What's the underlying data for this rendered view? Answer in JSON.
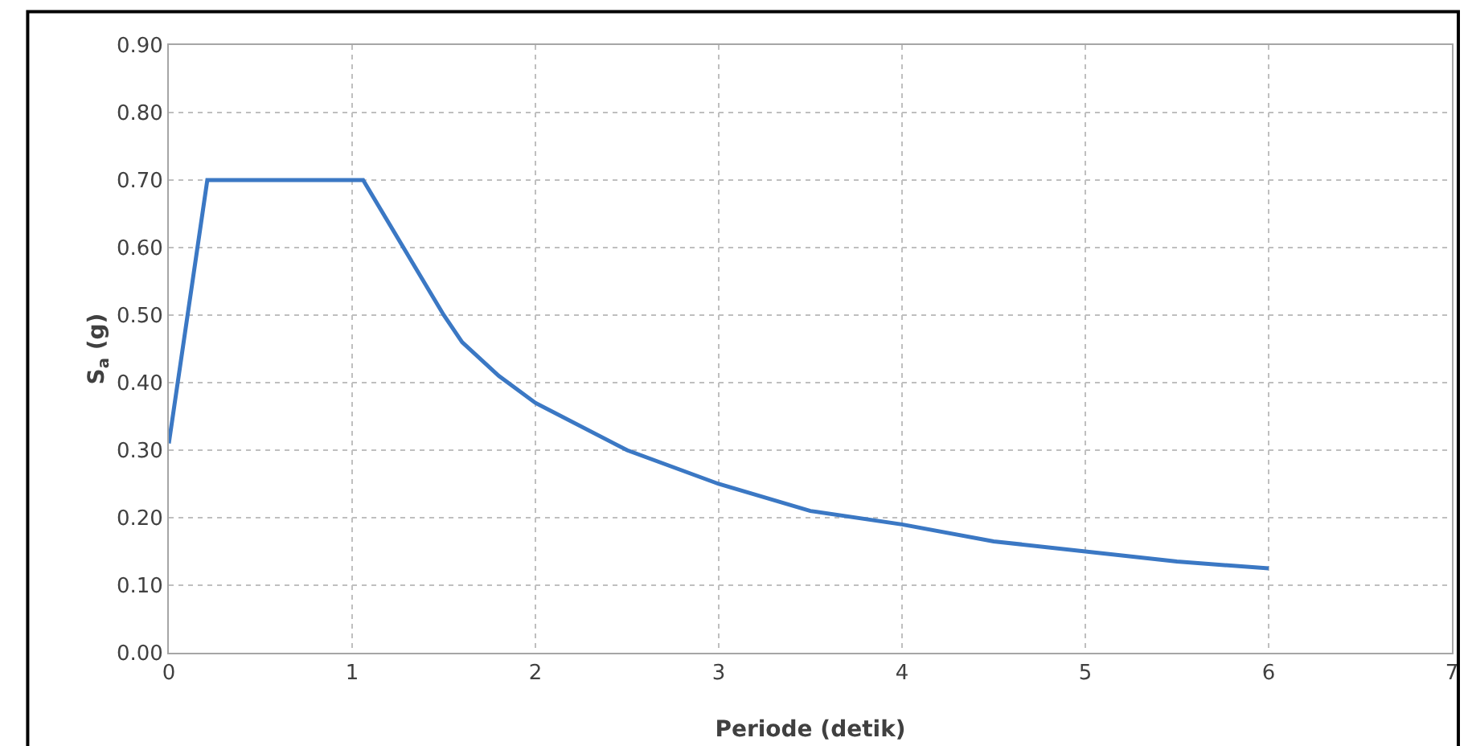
{
  "chart_data": {
    "type": "line",
    "xlabel": "Periode (detik)",
    "ylabel": "S$_{a}$ (g)",
    "x": [
      0,
      0.21,
      1.06,
      1.5,
      1.6,
      1.8,
      2,
      2.5,
      3,
      3.5,
      4,
      4.5,
      5,
      5.5,
      6
    ],
    "series": [
      {
        "color": "#3b78c4",
        "values": [
          0.31,
          0.7,
          0.7,
          0.5,
          0.46,
          0.41,
          0.37,
          0.3,
          0.25,
          0.21,
          0.19,
          0.165,
          0.15,
          0.135,
          0.125
        ]
      }
    ],
    "xlim": [
      0,
      7
    ],
    "xticks": [
      0,
      1,
      2,
      3,
      4,
      5,
      6,
      7
    ],
    "ylim": [
      0,
      0.9
    ],
    "yticks": [
      {
        "value": 0,
        "label": "0.00"
      },
      {
        "value": 0.1,
        "label": "0.10"
      },
      {
        "value": 0.2,
        "label": "0.20"
      },
      {
        "value": 0.3,
        "label": "0.30"
      },
      {
        "value": 0.4,
        "label": "0.40"
      },
      {
        "value": 0.5,
        "label": "0.50"
      },
      {
        "value": 0.6,
        "label": "0.60"
      },
      {
        "value": 0.7,
        "label": "0.70"
      },
      {
        "value": 0.8,
        "label": "0.80"
      },
      {
        "value": 0.9,
        "label": "0.90"
      }
    ],
    "grid": true,
    "line_style": "solid",
    "marker": "none"
  }
}
